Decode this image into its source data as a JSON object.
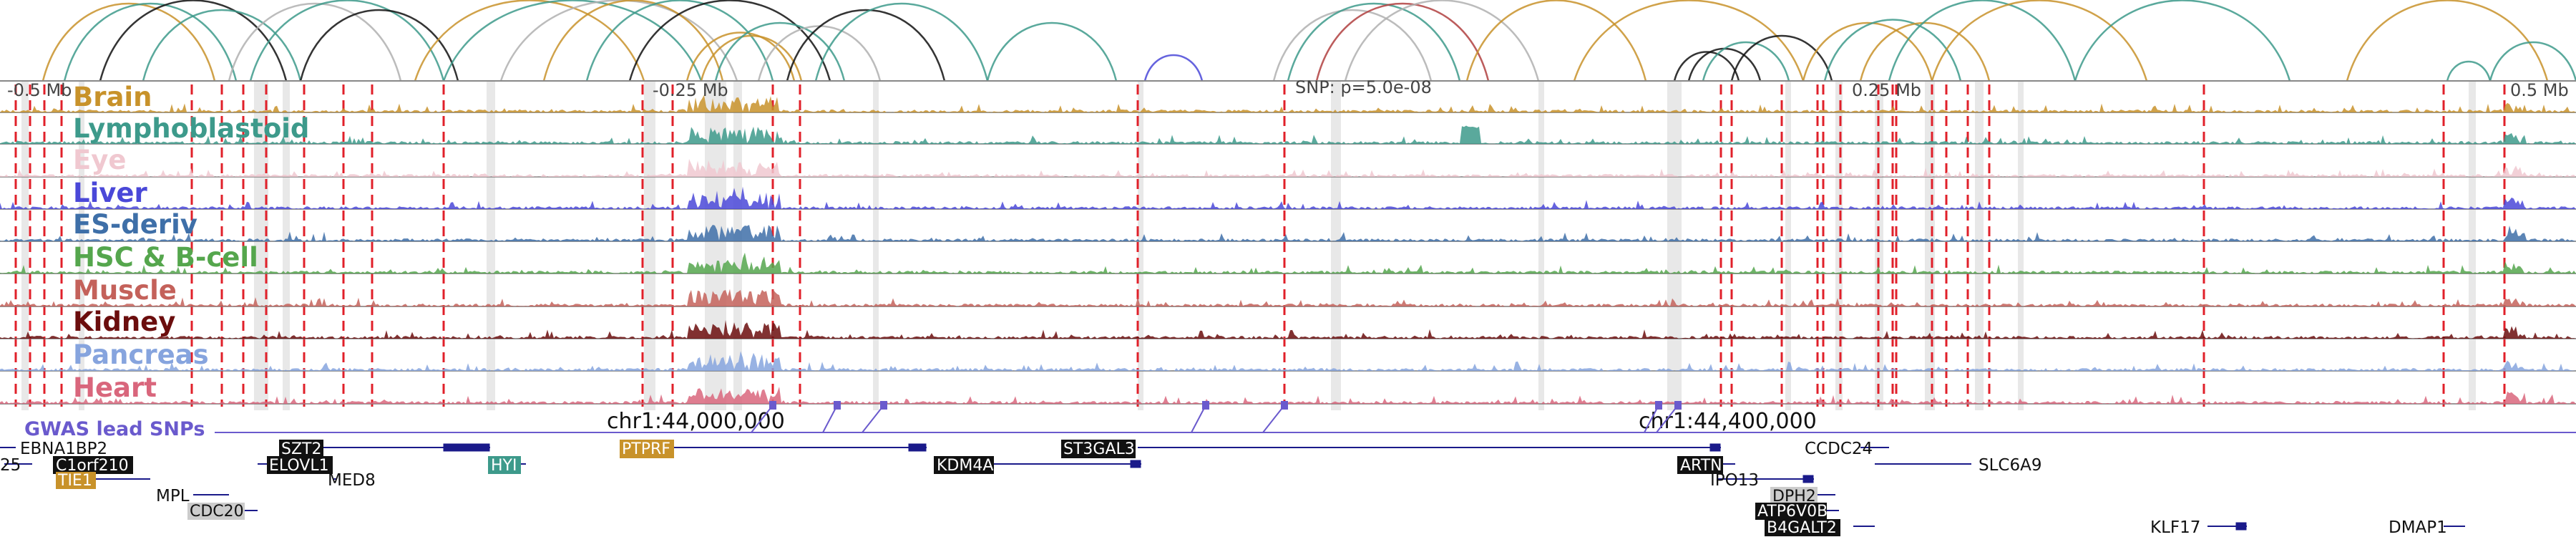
{
  "axis": {
    "labels": [
      "-0.5 Mb",
      "-0.25 Mb",
      "0.25 Mb",
      "0.5 Mb"
    ],
    "snp_label": "SNP: p=5.0e-08"
  },
  "tracks": [
    {
      "name": "Brain",
      "color": "#c8922a"
    },
    {
      "name": "Lymphoblastoid",
      "color": "#3d9a8b"
    },
    {
      "name": "Eye",
      "color": "#f0c8d0"
    },
    {
      "name": "Liver",
      "color": "#4a48d8"
    },
    {
      "name": "ES-deriv",
      "color": "#3e6fa8"
    },
    {
      "name": "HSC & B-cell",
      "color": "#55a64d"
    },
    {
      "name": "Muscle",
      "color": "#c4615a"
    },
    {
      "name": "Kidney",
      "color": "#6b0d0d"
    },
    {
      "name": "Pancreas",
      "color": "#86a4de"
    },
    {
      "name": "Heart",
      "color": "#d9667c"
    }
  ],
  "coords": {
    "left": "chr1:44,000,000",
    "right": "chr1:44,400,000"
  },
  "snp_track_label": "GWAS lead SNPs",
  "genes": {
    "plain": [
      "EBNA1BP2",
      "MED8",
      "MPL",
      "CCDC24",
      "SLC6A9",
      "IPO13",
      "KLF17",
      "DMAP1",
      "25"
    ],
    "boxed": [
      "SZT2",
      "ELOVL1",
      "C1orf210",
      "TIE1",
      "HYI",
      "PTPRF",
      "KDM4A",
      "ST3GAL3",
      "ARTN",
      "CDC20",
      "DPH2",
      "ATP6V0B",
      "B4GALT2"
    ]
  }
}
